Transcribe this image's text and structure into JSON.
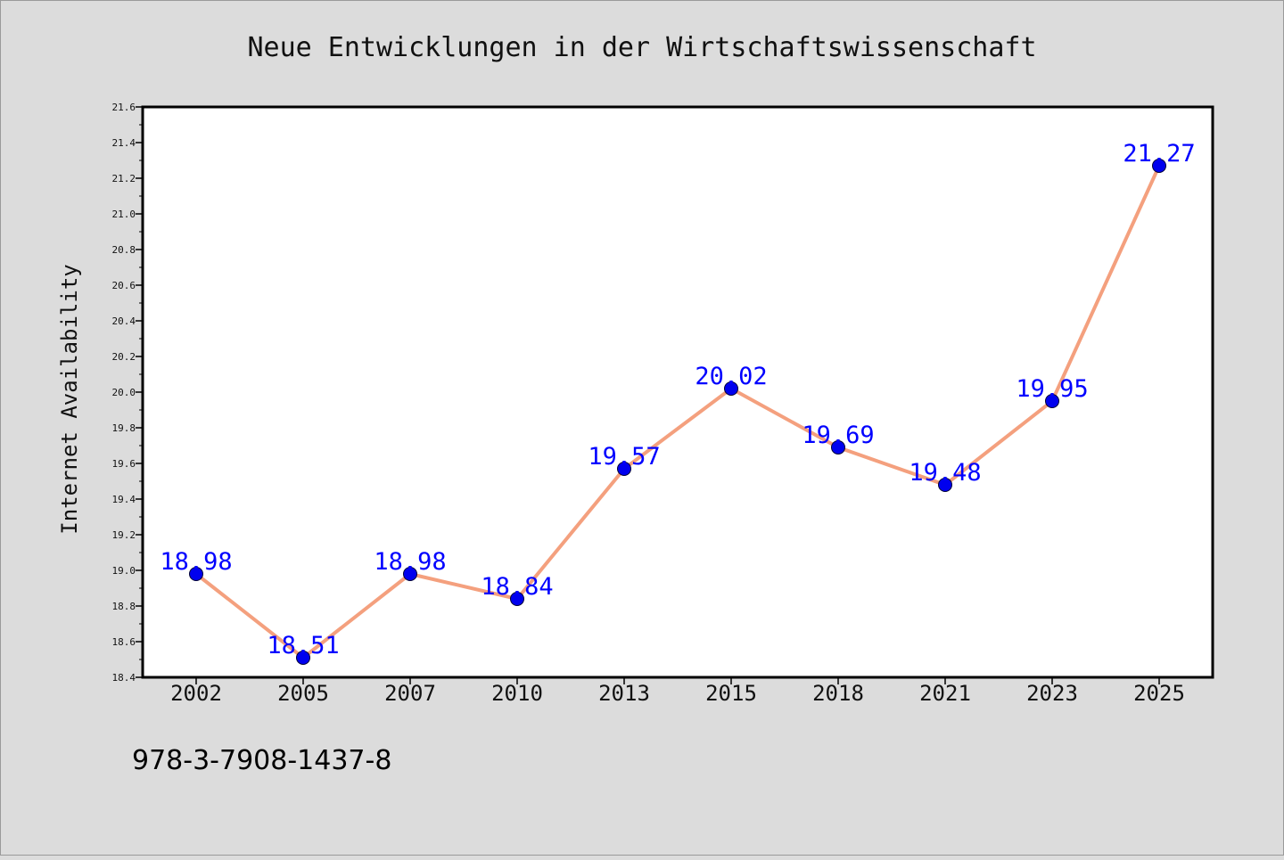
{
  "chart_data": {
    "type": "line",
    "title": "Neue Entwicklungen in der Wirtschaftswissenschaft",
    "xlabel": "",
    "ylabel": "Internet Availability",
    "categories": [
      "2002",
      "2005",
      "2007",
      "2010",
      "2013",
      "2015",
      "2018",
      "2021",
      "2023",
      "2025"
    ],
    "series": [
      {
        "values": [
          18.98,
          18.51,
          18.98,
          18.84,
          19.57,
          20.02,
          19.69,
          19.48,
          19.95,
          21.27
        ],
        "data_labels": [
          "18.98",
          "18.51",
          "18.98",
          "18.84",
          "19.57",
          "20.02",
          "19.69",
          "19.48",
          "19.95",
          "21.27"
        ],
        "line_color": "#f4a07e",
        "marker_color": "#0000ee",
        "label_color": "#0000ff"
      }
    ],
    "ylim": [
      18.4,
      21.6
    ],
    "yticks": [
      "18.4",
      "18.6",
      "18.8",
      "19.0",
      "19.2",
      "19.4",
      "19.6",
      "19.8",
      "20.0",
      "20.2",
      "20.4",
      "20.6",
      "20.8",
      "21.0",
      "21.2",
      "21.4",
      "21.6"
    ],
    "grid": false,
    "legend": "none"
  },
  "footer": {
    "isbn": "978-3-7908-1437-8"
  }
}
